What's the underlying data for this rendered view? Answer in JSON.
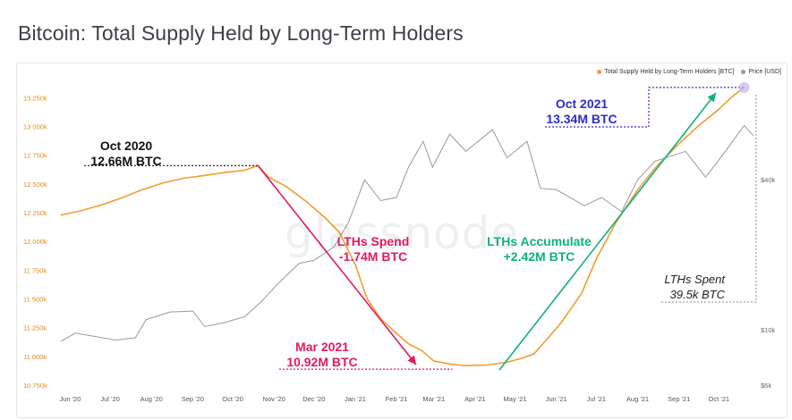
{
  "title": "Bitcoin: Total Supply Held by Long-Term Holders",
  "watermark": "glassnode",
  "colors": {
    "supply": "#f39c2e",
    "price": "#999999",
    "spend": "#e3195f",
    "accumulate": "#10b07a",
    "oct2021": "#2c2ccf",
    "text": "#222222"
  },
  "legend": {
    "position": "top-right",
    "supply_label": "Total Supply Held by Long-Term Holders [BTC]",
    "price_label": "Price [USD]"
  },
  "annotations": {
    "oct2020": {
      "line1": "Oct 2020",
      "line2": "12.66M BTC"
    },
    "oct2021": {
      "line1": "Oct 2021",
      "line2": "13.34M BTC"
    },
    "mar2021": {
      "line1": "Mar 2021",
      "line2": "10.92M BTC"
    },
    "spend": {
      "line1": "LTHs Spend",
      "line2": "-1.74M BTC"
    },
    "accumulate": {
      "line1": "LTHs Accumulate",
      "line2": "+2.42M BTC"
    },
    "spent": {
      "line1": "LTHs Spent",
      "line2": "39.5k BTC"
    }
  },
  "chart_data": {
    "type": "line",
    "title": "Bitcoin: Total Supply Held by Long-Term Holders",
    "x_range": [
      "2020-05-25",
      "2021-10-27"
    ],
    "x_ticks": [
      {
        "date": "2020-06-01",
        "label": "Jun '20"
      },
      {
        "date": "2020-07-01",
        "label": "Jul '20"
      },
      {
        "date": "2020-08-01",
        "label": "Aug '20"
      },
      {
        "date": "2020-09-01",
        "label": "Sep '20"
      },
      {
        "date": "2020-10-01",
        "label": "Oct '20"
      },
      {
        "date": "2020-11-01",
        "label": "Nov '20"
      },
      {
        "date": "2020-12-01",
        "label": "Dec '20"
      },
      {
        "date": "2021-01-01",
        "label": "Jan '21"
      },
      {
        "date": "2021-02-01",
        "label": "Feb '21"
      },
      {
        "date": "2021-03-01",
        "label": "Mar '21"
      },
      {
        "date": "2021-04-01",
        "label": "Apr '21"
      },
      {
        "date": "2021-05-01",
        "label": "May '21"
      },
      {
        "date": "2021-06-01",
        "label": "Jun '21"
      },
      {
        "date": "2021-07-01",
        "label": "Jul '21"
      },
      {
        "date": "2021-08-01",
        "label": "Aug '21"
      },
      {
        "date": "2021-09-01",
        "label": "Sep '21"
      },
      {
        "date": "2021-10-01",
        "label": "Oct '21"
      }
    ],
    "y_left": {
      "range": [
        10750000,
        13300000
      ],
      "ticks": [
        {
          "value": 10750000,
          "label": "10 750k"
        },
        {
          "value": 11000000,
          "label": "11 000k"
        },
        {
          "value": 11250000,
          "label": "11 250k"
        },
        {
          "value": 11500000,
          "label": "11 500k"
        },
        {
          "value": 11750000,
          "label": "11 750k"
        },
        {
          "value": 12000000,
          "label": "12 000k"
        },
        {
          "value": 12250000,
          "label": "12 250k"
        },
        {
          "value": 12500000,
          "label": "12 500k"
        },
        {
          "value": 12750000,
          "label": "12 750k"
        },
        {
          "value": 13000000,
          "label": "13 000k"
        },
        {
          "value": 13250000,
          "label": "13 250k"
        }
      ]
    },
    "y_right": {
      "scale": "log",
      "range": [
        6000,
        90000
      ],
      "ticks": [
        {
          "value": 6000,
          "label": "$6k"
        },
        {
          "value": 10000,
          "label": "$10k"
        },
        {
          "value": 40000,
          "label": "$40k"
        }
      ]
    },
    "series": [
      {
        "name": "Total Supply Held by Long-Term Holders [BTC]",
        "axis": "left",
        "points": [
          [
            "2020-05-25",
            12230000
          ],
          [
            "2020-06-10",
            12270000
          ],
          [
            "2020-06-25",
            12320000
          ],
          [
            "2020-07-10",
            12380000
          ],
          [
            "2020-07-25",
            12450000
          ],
          [
            "2020-08-10",
            12510000
          ],
          [
            "2020-08-25",
            12550000
          ],
          [
            "2020-09-10",
            12575000
          ],
          [
            "2020-09-25",
            12600000
          ],
          [
            "2020-10-10",
            12620000
          ],
          [
            "2020-10-20",
            12660000
          ],
          [
            "2020-10-28",
            12560000
          ],
          [
            "2020-11-10",
            12480000
          ],
          [
            "2020-11-25",
            12350000
          ],
          [
            "2020-12-10",
            12200000
          ],
          [
            "2020-12-20",
            12080000
          ],
          [
            "2021-01-01",
            11800000
          ],
          [
            "2021-01-10",
            11500000
          ],
          [
            "2021-01-20",
            11330000
          ],
          [
            "2021-02-01",
            11200000
          ],
          [
            "2021-02-10",
            11110000
          ],
          [
            "2021-02-20",
            11050000
          ],
          [
            "2021-03-01",
            10960000
          ],
          [
            "2021-03-15",
            10930000
          ],
          [
            "2021-03-25",
            10920000
          ],
          [
            "2021-04-10",
            10925000
          ],
          [
            "2021-04-25",
            10950000
          ],
          [
            "2021-05-05",
            10980000
          ],
          [
            "2021-05-15",
            11020000
          ],
          [
            "2021-05-25",
            11150000
          ],
          [
            "2021-06-05",
            11300000
          ],
          [
            "2021-06-20",
            11550000
          ],
          [
            "2021-07-01",
            11850000
          ],
          [
            "2021-07-15",
            12150000
          ],
          [
            "2021-08-01",
            12450000
          ],
          [
            "2021-08-15",
            12650000
          ],
          [
            "2021-09-01",
            12850000
          ],
          [
            "2021-09-15",
            13000000
          ],
          [
            "2021-10-01",
            13150000
          ],
          [
            "2021-10-10",
            13250000
          ],
          [
            "2021-10-20",
            13340000
          ]
        ]
      },
      {
        "name": "Price [USD]",
        "axis": "right",
        "points": [
          [
            "2020-05-25",
            9000
          ],
          [
            "2020-06-05",
            9700
          ],
          [
            "2020-06-20",
            9400
          ],
          [
            "2020-07-05",
            9100
          ],
          [
            "2020-07-20",
            9300
          ],
          [
            "2020-07-28",
            11000
          ],
          [
            "2020-08-15",
            11800
          ],
          [
            "2020-09-01",
            11900
          ],
          [
            "2020-09-10",
            10300
          ],
          [
            "2020-09-25",
            10700
          ],
          [
            "2020-10-10",
            11300
          ],
          [
            "2020-10-22",
            12900
          ],
          [
            "2020-11-05",
            15500
          ],
          [
            "2020-11-20",
            18500
          ],
          [
            "2020-12-01",
            19000
          ],
          [
            "2020-12-16",
            21500
          ],
          [
            "2020-12-27",
            27000
          ],
          [
            "2021-01-08",
            40000
          ],
          [
            "2021-01-20",
            33000
          ],
          [
            "2021-02-01",
            34000
          ],
          [
            "2021-02-10",
            45000
          ],
          [
            "2021-02-21",
            57000
          ],
          [
            "2021-02-28",
            45000
          ],
          [
            "2021-03-13",
            61000
          ],
          [
            "2021-03-25",
            52000
          ],
          [
            "2021-04-14",
            63500
          ],
          [
            "2021-04-25",
            49000
          ],
          [
            "2021-05-10",
            57000
          ],
          [
            "2021-05-20",
            37000
          ],
          [
            "2021-06-01",
            36500
          ],
          [
            "2021-06-22",
            31500
          ],
          [
            "2021-07-05",
            34000
          ],
          [
            "2021-07-20",
            29800
          ],
          [
            "2021-08-01",
            40000
          ],
          [
            "2021-08-14",
            47500
          ],
          [
            "2021-09-06",
            52000
          ],
          [
            "2021-09-21",
            41000
          ],
          [
            "2021-10-01",
            48000
          ],
          [
            "2021-10-20",
            66000
          ],
          [
            "2021-10-27",
            60000
          ]
        ]
      }
    ]
  }
}
